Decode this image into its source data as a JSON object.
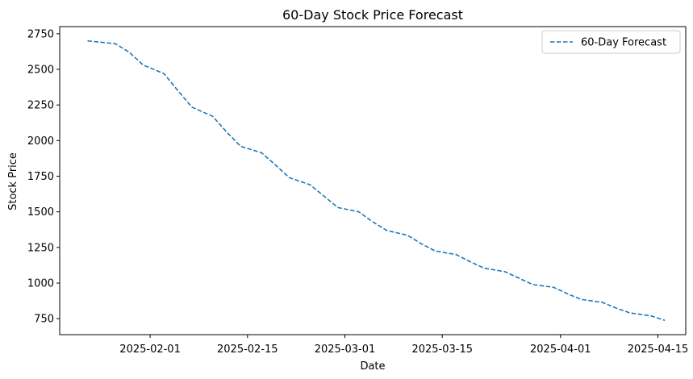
{
  "chart_data": {
    "type": "line",
    "title": "60-Day Stock Price Forecast",
    "xlabel": "Date",
    "ylabel": "Stock Price",
    "x_start": "2025-01-23",
    "x_end": "2025-04-16",
    "xlim": [
      "2025-01-19",
      "2025-04-19"
    ],
    "ylim": [
      638,
      2800
    ],
    "x_ticks": [
      {
        "date": "2025-02-01",
        "label": "2025-02-01"
      },
      {
        "date": "2025-02-15",
        "label": "2025-02-15"
      },
      {
        "date": "2025-03-01",
        "label": "2025-03-01"
      },
      {
        "date": "2025-03-15",
        "label": "2025-03-15"
      },
      {
        "date": "2025-04-01",
        "label": "2025-04-01"
      },
      {
        "date": "2025-04-15",
        "label": "2025-04-15"
      }
    ],
    "y_ticks": [
      750,
      1000,
      1250,
      1500,
      1750,
      2000,
      2250,
      2500,
      2750
    ],
    "legend_position": "top-right",
    "grid": false,
    "series": [
      {
        "name": "60-Day Forecast",
        "color": "#1f77b4",
        "linestyle": "dashed",
        "points": [
          {
            "x": "2025-01-23",
            "y": 2700
          },
          {
            "x": "2025-01-27",
            "y": 2680
          },
          {
            "x": "2025-01-29",
            "y": 2620
          },
          {
            "x": "2025-01-31",
            "y": 2530
          },
          {
            "x": "2025-02-03",
            "y": 2470
          },
          {
            "x": "2025-02-05",
            "y": 2350
          },
          {
            "x": "2025-02-07",
            "y": 2235
          },
          {
            "x": "2025-02-10",
            "y": 2170
          },
          {
            "x": "2025-02-12",
            "y": 2060
          },
          {
            "x": "2025-02-14",
            "y": 1960
          },
          {
            "x": "2025-02-17",
            "y": 1915
          },
          {
            "x": "2025-02-19",
            "y": 1830
          },
          {
            "x": "2025-02-21",
            "y": 1740
          },
          {
            "x": "2025-02-24",
            "y": 1690
          },
          {
            "x": "2025-02-26",
            "y": 1610
          },
          {
            "x": "2025-02-28",
            "y": 1530
          },
          {
            "x": "2025-03-03",
            "y": 1500
          },
          {
            "x": "2025-03-05",
            "y": 1430
          },
          {
            "x": "2025-03-07",
            "y": 1370
          },
          {
            "x": "2025-03-10",
            "y": 1335
          },
          {
            "x": "2025-03-12",
            "y": 1275
          },
          {
            "x": "2025-03-14",
            "y": 1225
          },
          {
            "x": "2025-03-17",
            "y": 1200
          },
          {
            "x": "2025-03-19",
            "y": 1150
          },
          {
            "x": "2025-03-21",
            "y": 1105
          },
          {
            "x": "2025-03-24",
            "y": 1080
          },
          {
            "x": "2025-03-26",
            "y": 1035
          },
          {
            "x": "2025-03-28",
            "y": 990
          },
          {
            "x": "2025-03-31",
            "y": 970
          },
          {
            "x": "2025-04-02",
            "y": 925
          },
          {
            "x": "2025-04-04",
            "y": 885
          },
          {
            "x": "2025-04-07",
            "y": 865
          },
          {
            "x": "2025-04-09",
            "y": 825
          },
          {
            "x": "2025-04-11",
            "y": 790
          },
          {
            "x": "2025-04-14",
            "y": 770
          },
          {
            "x": "2025-04-16",
            "y": 738
          }
        ]
      }
    ]
  }
}
